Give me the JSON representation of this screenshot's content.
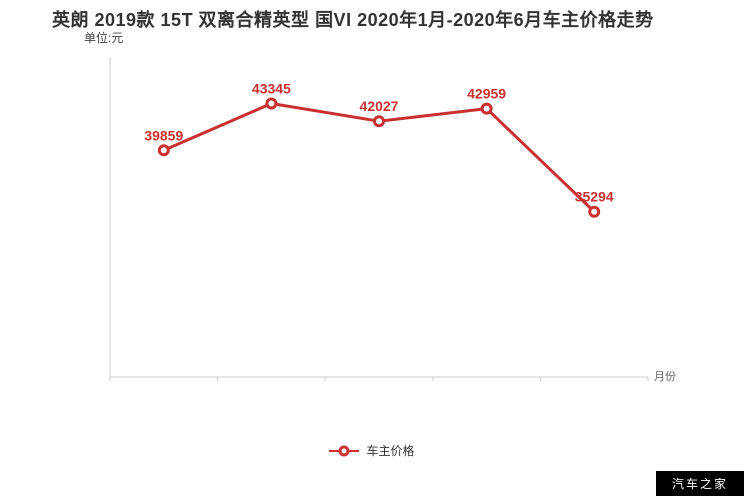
{
  "page": {
    "watermark": "汽车之家"
  },
  "chart_data": {
    "type": "line",
    "title": "英朗 2019款 15T 双离合精英型 国VI 2020年1月-2020年6月车主价格走势",
    "unit_label": "单位:元",
    "xlabel": "月份",
    "ylabel": "",
    "x_tick_labels": [
      "",
      "",
      "",
      "",
      ""
    ],
    "series": [
      {
        "name": "车主价格",
        "values": [
          39859,
          43345,
          42027,
          42959,
          35294
        ],
        "data_labels": [
          "39859",
          "43345",
          "42027",
          "42959",
          "35294"
        ]
      }
    ],
    "ylim": [
      23000,
      46800
    ],
    "grid": false,
    "legend_position": "bottom",
    "data_labels_visible": true,
    "x_tick_labels_visible": false
  },
  "legend": {
    "items": [
      {
        "label": "车主价格",
        "color": "#c9302f"
      }
    ]
  },
  "colors": {
    "line": "#c9302f",
    "marker_fill": "#ffffff",
    "data_label": "#c9302f",
    "axis": "#cccccc",
    "title_text": "#333333",
    "unit_text": "#444444",
    "axis_label_text": "#666666",
    "legend_text": "#333333",
    "watermark_bg": "#000000",
    "watermark_text": "#ffffff"
  }
}
